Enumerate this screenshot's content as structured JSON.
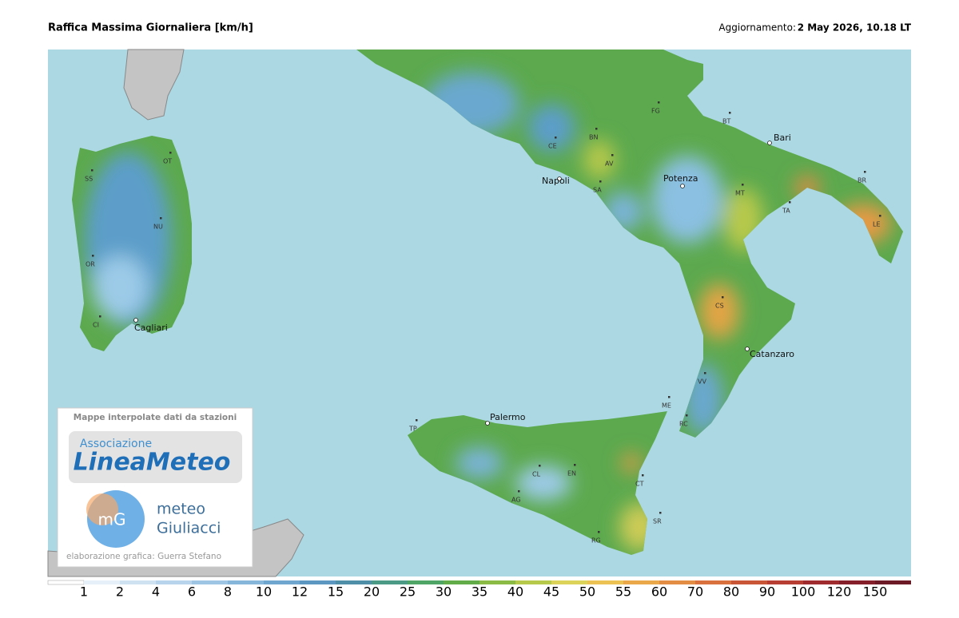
{
  "header": {
    "title": "Raffica Massima Giornaliera [km/h]",
    "update_label": "Aggiornamento:",
    "update_time": "2 May 2026, 10.18 LT"
  },
  "places": {
    "napoli": "Napoli",
    "potenza": "Potenza",
    "bari": "Bari",
    "catanzaro": "Catanzaro",
    "palermo": "Palermo",
    "cagliari": "Cagliari"
  },
  "codes": [
    "SS",
    "OT",
    "NU",
    "OR",
    "CI",
    "CE",
    "BN",
    "AV",
    "SA",
    "FG",
    "BT",
    "BR",
    "TA",
    "LE",
    "MT",
    "CS",
    "VV",
    "RC",
    "ME",
    "TP",
    "CL",
    "EN",
    "AG",
    "CT",
    "SR",
    "RG"
  ],
  "logo": {
    "caption": "Mappe interpolate dati da stazioni",
    "association": "Associazione",
    "brand": "LineaMeteo",
    "mg": "mG",
    "meteo": "meteo",
    "giuliacci": "Giuliacci",
    "credit": "elaborazione grafica: Guerra Stefano"
  },
  "legend": {
    "labels": [
      "1",
      "2",
      "4",
      "6",
      "8",
      "10",
      "12",
      "15",
      "20",
      "25",
      "30",
      "35",
      "40",
      "45",
      "50",
      "55",
      "60",
      "70",
      "80",
      "90",
      "100",
      "120",
      "150"
    ],
    "colors": [
      "#ffffff",
      "#e6f0f8",
      "#cfe2f2",
      "#b7d4ec",
      "#9ec5e4",
      "#86b6da",
      "#6fa6cf",
      "#5b97c1",
      "#4f8fa8",
      "#4a9a86",
      "#4ea565",
      "#62ad4a",
      "#8bbb45",
      "#b6c94a",
      "#dcd35a",
      "#ecc254",
      "#eaa84a",
      "#e28d43",
      "#d8713d",
      "#c95637",
      "#b63e33",
      "#9f2b2e",
      "#85202a",
      "#6b1a26"
    ]
  }
}
